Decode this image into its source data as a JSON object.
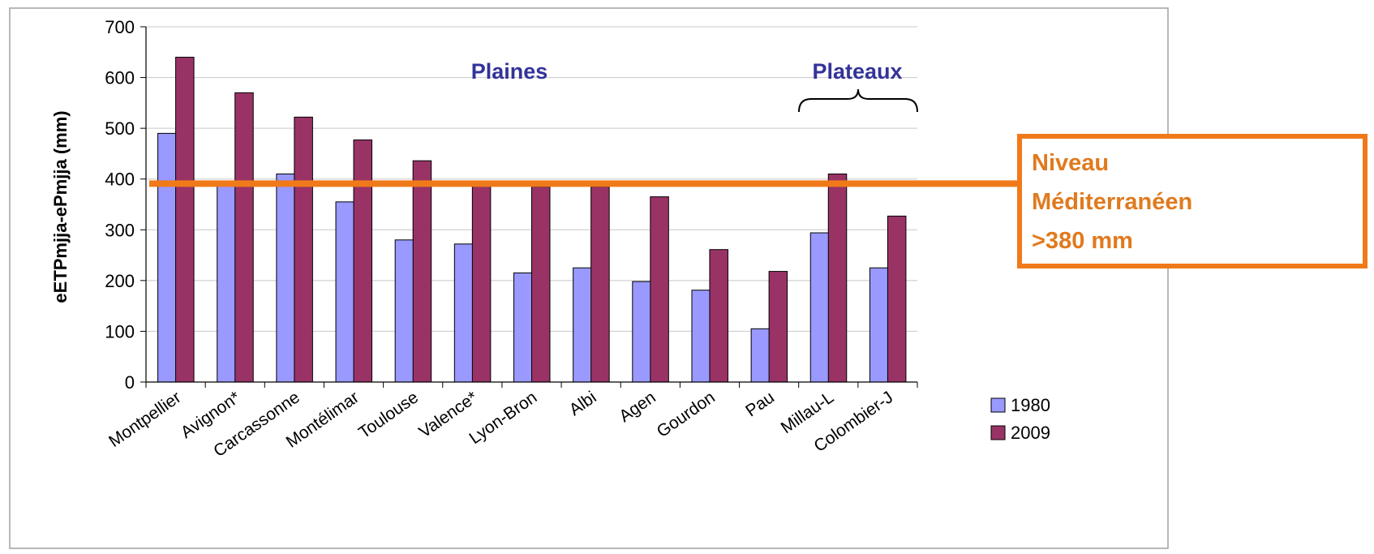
{
  "colors": {
    "series_1980": "#9999ff",
    "series_2009": "#993366",
    "group_label": "#333399",
    "threshold": "#f07a1a",
    "annotation_text": "#e07a1e",
    "grid": "#c8c8c8",
    "frame": "#a0a0a0"
  },
  "chart_data": {
    "type": "bar",
    "ylabel": "eETPmjja-ePmjja (mm)",
    "ylim": [
      0,
      700
    ],
    "yticks": [
      "0",
      "100",
      "200",
      "300",
      "400",
      "500",
      "600",
      "700"
    ],
    "grid": true,
    "legend_position": "right",
    "categories": [
      "Montpellier",
      "Avignon*",
      "Carcassonne",
      "Montélimar",
      "Toulouse",
      "Valence*",
      "Lyon-Bron",
      "Albi",
      "Agen",
      "Gourdon",
      "Pau",
      "Millau-L",
      "Colombier-J"
    ],
    "series": [
      {
        "name": "1980",
        "values": [
          490,
          390,
          410,
          355,
          280,
          272,
          215,
          225,
          198,
          181,
          105,
          294,
          225
        ]
      },
      {
        "name": "2009",
        "values": [
          640,
          570,
          522,
          477,
          436,
          390,
          385,
          385,
          365,
          261,
          218,
          410,
          327
        ]
      }
    ],
    "group_labels": [
      "Plaines",
      "Plateaux"
    ],
    "threshold": {
      "value": 391,
      "label_lines": [
        "Niveau",
        "Méditerranéen",
        ">380 mm"
      ]
    }
  }
}
